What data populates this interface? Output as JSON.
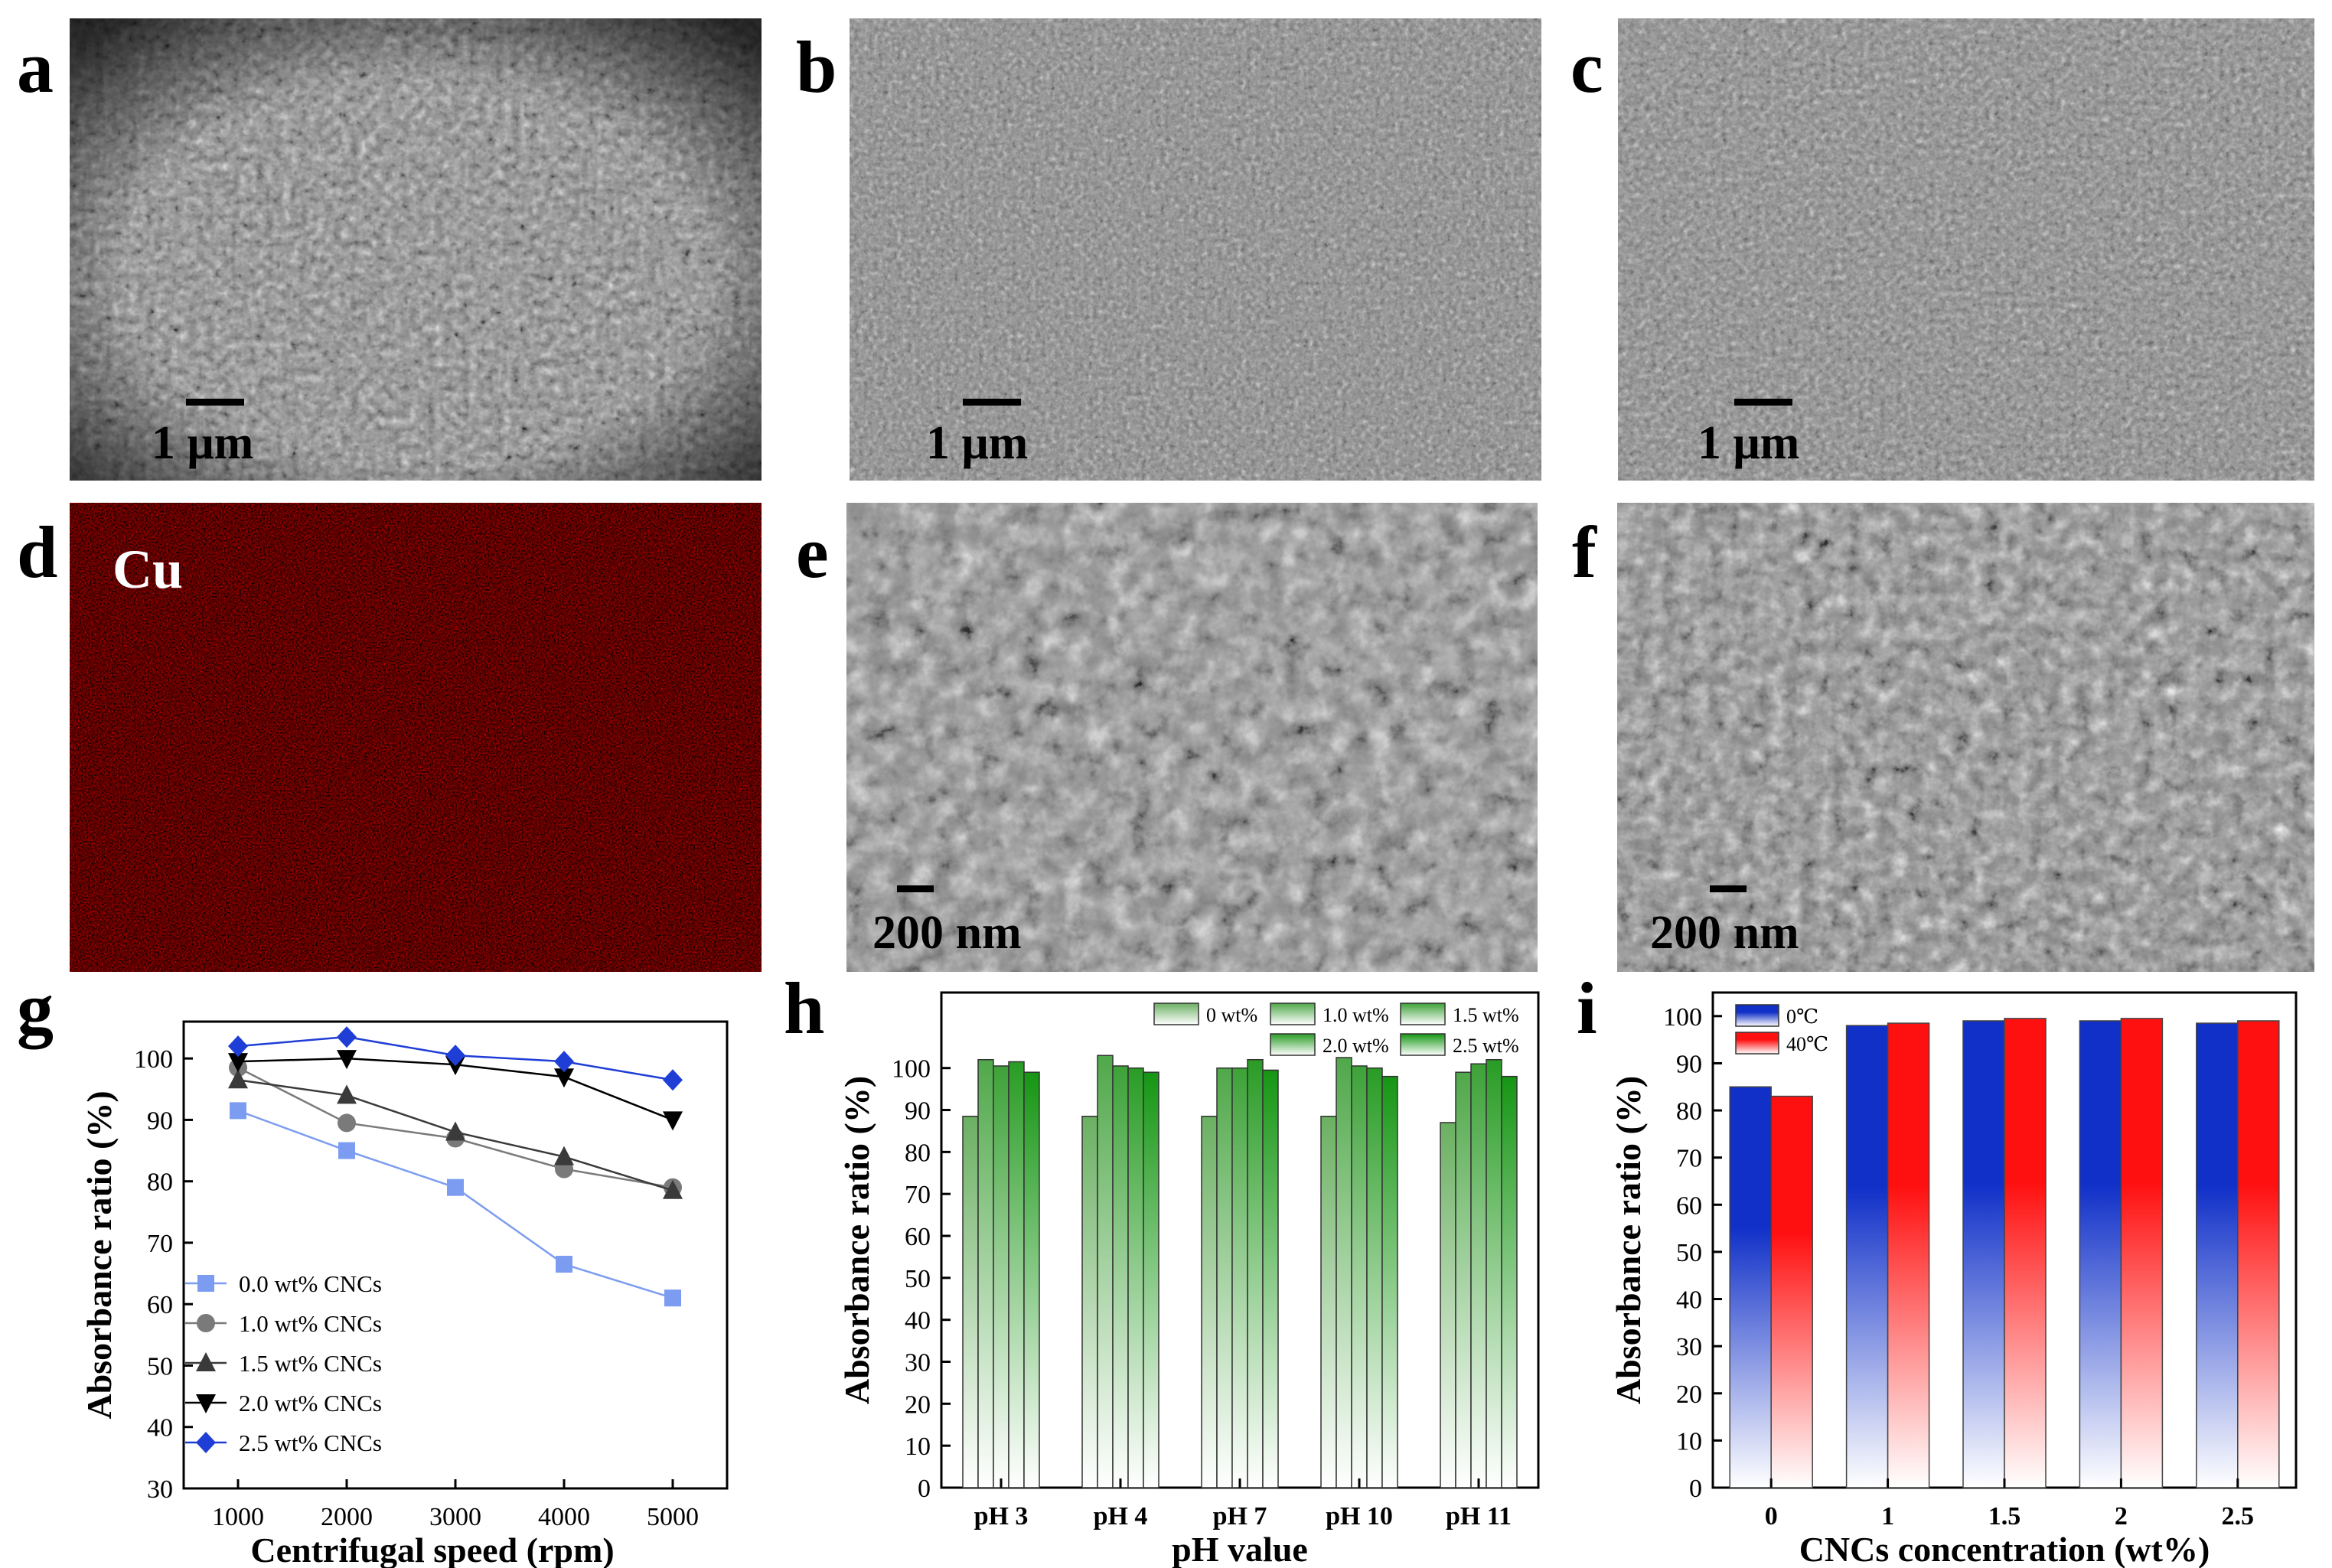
{
  "panel_letters": {
    "a": "a",
    "b": "b",
    "c": "c",
    "d": "d",
    "e": "e",
    "f": "f",
    "g": "g",
    "h": "h",
    "i": "i"
  },
  "scale_bars": {
    "a": "1 μm",
    "b": "1 μm",
    "c": "1 μm",
    "e": "200 nm",
    "f": "200 nm"
  },
  "eds_label": "Cu",
  "colors": {
    "sem_gray": "#8a8a8a",
    "eds_red": "#b00000",
    "eds_bg": "#250000",
    "g_blue_light": "#7b9cf0",
    "g_gray": "#7a7a7a",
    "g_dark": "#3a3a3a",
    "g_black": "#000000",
    "g_blue": "#1f3ed6",
    "h_green": "#22a836",
    "i_blue": "#1030c8",
    "i_red": "#ff1010"
  },
  "chart_data": [
    {
      "panel": "g",
      "type": "line",
      "xlabel": "Centrifugal speed (rpm)",
      "ylabel": "Absorbance ratio (%)",
      "x": [
        1000,
        2000,
        3000,
        4000,
        5000
      ],
      "xticks": [
        "1000",
        "2000",
        "3000",
        "4000",
        "5000"
      ],
      "yticks": [
        "30",
        "40",
        "50",
        "60",
        "70",
        "80",
        "90",
        "100"
      ],
      "ylim": [
        30,
        106
      ],
      "xlim": [
        500,
        5500
      ],
      "legend_position": "bottom-left",
      "series": [
        {
          "name": "0.0 wt%  CNCs",
          "marker": "square",
          "color": "#7b9cf0",
          "values": [
            91.5,
            85,
            79,
            66.5,
            61
          ]
        },
        {
          "name": "1.0 wt% CNCs",
          "marker": "circle",
          "color": "#7a7a7a",
          "values": [
            98.5,
            89.5,
            87,
            82,
            79
          ]
        },
        {
          "name": "1.5 wt% CNCs",
          "marker": "triangle-up",
          "color": "#3a3a3a",
          "values": [
            96.5,
            94,
            88,
            84,
            78.5
          ]
        },
        {
          "name": "2.0 wt% CNCs",
          "marker": "triangle-down",
          "color": "#000000",
          "values": [
            99.5,
            100,
            99,
            97,
            90
          ]
        },
        {
          "name": "2.5 wt% CNCs",
          "marker": "diamond",
          "color": "#1f3ed6",
          "values": [
            102,
            103.5,
            100.5,
            99.5,
            96.5
          ]
        }
      ]
    },
    {
      "panel": "h",
      "type": "bar",
      "xlabel": "pH value",
      "ylabel": "Absorbance ratio (%)",
      "categories": [
        "pH 3",
        "pH 4",
        "pH 7",
        "pH 10",
        "pH 11"
      ],
      "yticks": [
        "0",
        "10",
        "20",
        "30",
        "40",
        "50",
        "60",
        "70",
        "80",
        "90",
        "100"
      ],
      "ylim": [
        0,
        118
      ],
      "legend_position": "top-right",
      "series": [
        {
          "name": "0 wt%",
          "shade": 0.35,
          "values": [
            88.5,
            88.5,
            88.5,
            88.5,
            87
          ]
        },
        {
          "name": "1.0 wt%",
          "shade": 0.55,
          "values": [
            102,
            103,
            100,
            102.5,
            99
          ]
        },
        {
          "name": "1.5 wt%",
          "shade": 0.7,
          "values": [
            100.5,
            100.5,
            100,
            100.5,
            101
          ]
        },
        {
          "name": "2.0 wt%",
          "shade": 0.85,
          "values": [
            101.5,
            100,
            102,
            100,
            102
          ]
        },
        {
          "name": "2.5 wt%",
          "shade": 1.0,
          "values": [
            99,
            99,
            99.5,
            98,
            98
          ]
        }
      ]
    },
    {
      "panel": "i",
      "type": "bar",
      "xlabel": "CNCs concentration (wt%)",
      "ylabel": "Absorbance ratio (%)",
      "categories": [
        "0",
        "1",
        "1.5",
        "2",
        "2.5"
      ],
      "yticks": [
        "0",
        "10",
        "20",
        "30",
        "40",
        "50",
        "60",
        "70",
        "80",
        "90",
        "100"
      ],
      "ylim": [
        0,
        105
      ],
      "legend_position": "top-left",
      "series": [
        {
          "name": "0℃",
          "color": "#1030c8",
          "values": [
            85,
            98,
            99,
            99,
            98.5
          ]
        },
        {
          "name": "40℃",
          "color": "#ff1010",
          "values": [
            83,
            98.5,
            99.5,
            99.5,
            99
          ]
        }
      ]
    }
  ]
}
